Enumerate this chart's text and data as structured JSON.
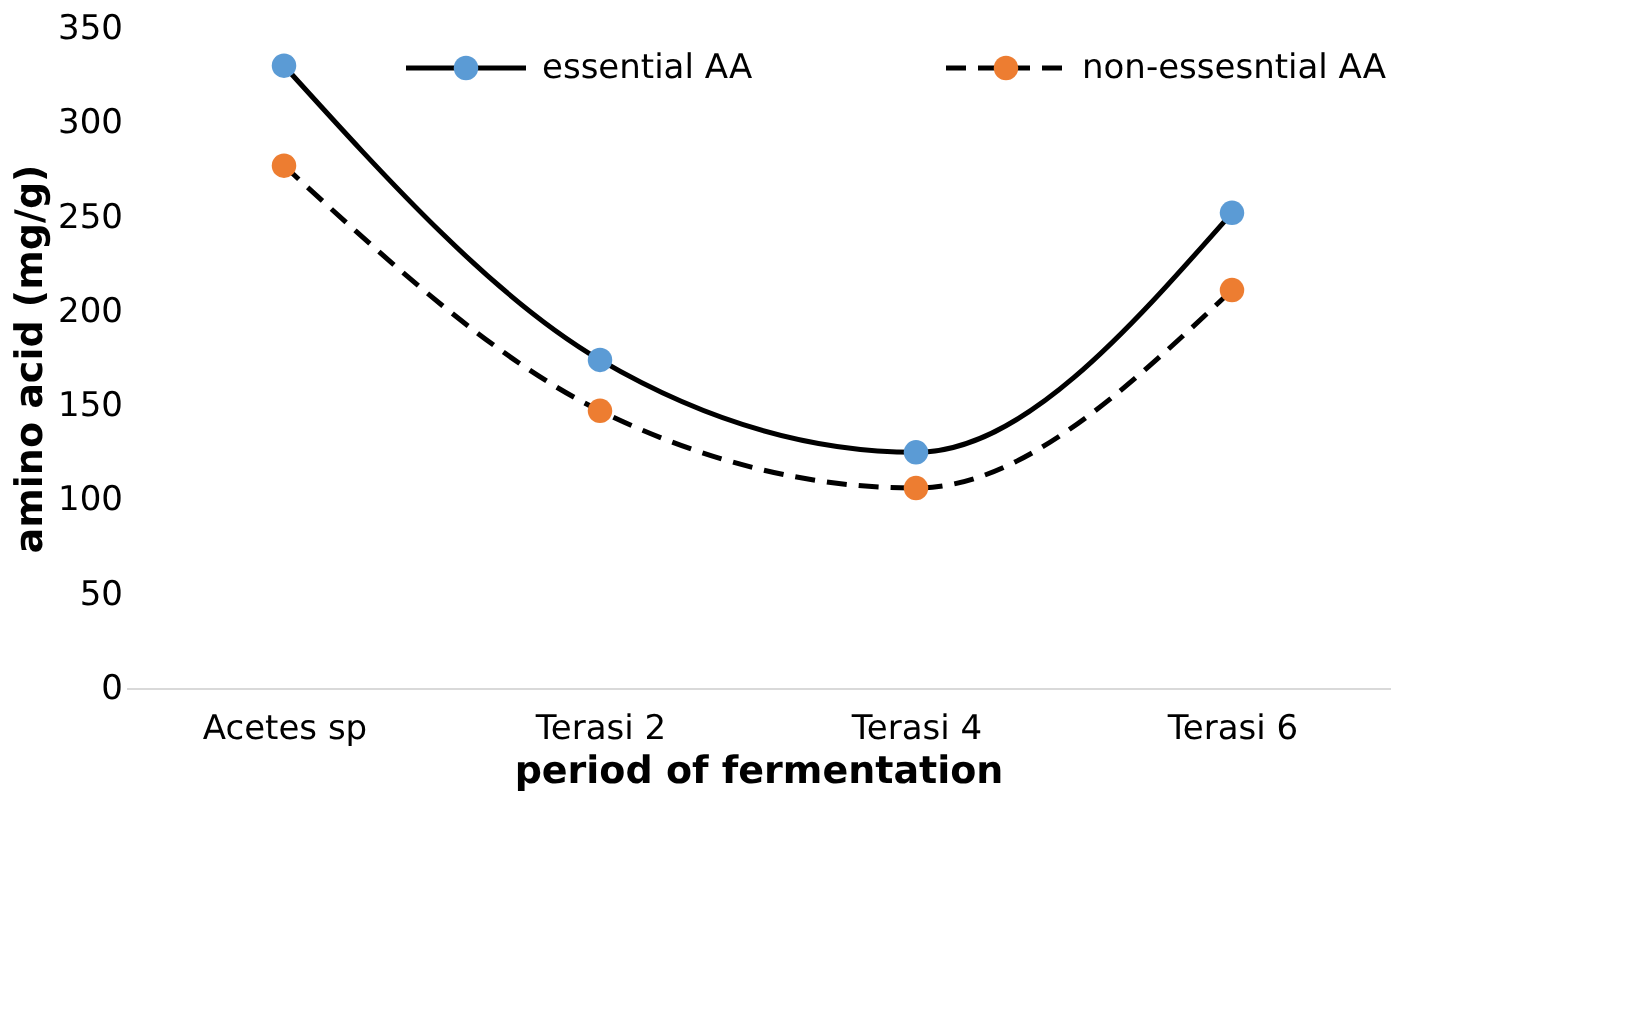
{
  "chart_data": {
    "type": "line",
    "xlabel": "period of fermentation",
    "ylabel": "amino acid (mg/g)",
    "categories": [
      "Acetes sp",
      "Terasi 2",
      "Terasi 4",
      "Terasi 6"
    ],
    "series": [
      {
        "name": "essential AA",
        "color": "#5b9bd5",
        "values": [
          330,
          174,
          125,
          252
        ],
        "line_style": "solid"
      },
      {
        "name": "non-essesntial AA",
        "color": "#ed7d31",
        "values": [
          277,
          147,
          106,
          211
        ],
        "line_style": "dashed"
      }
    ],
    "ylim": [
      0,
      350
    ],
    "yticks": [
      0,
      50,
      100,
      150,
      200,
      250,
      300,
      350
    ],
    "grid": false,
    "legend": "top",
    "marker": "circle"
  }
}
